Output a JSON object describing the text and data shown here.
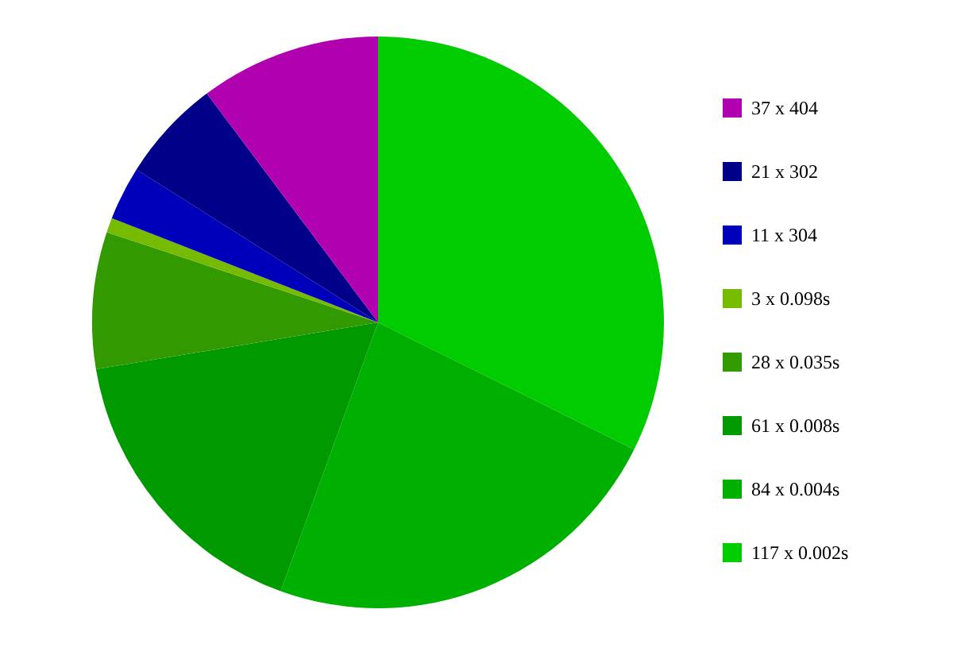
{
  "chart_data": {
    "type": "pie",
    "categories": [
      "117 x 0.002s",
      "84 x 0.004s",
      "61 x 0.008s",
      "28 x 0.035s",
      "3 x 0.098s",
      "11 x 304",
      "21 x 302",
      "37 x 404"
    ],
    "values": [
      32.33,
      23.2,
      16.85,
      7.73,
      0.83,
      3.04,
      5.8,
      10.22
    ],
    "colors": [
      "#00cc00",
      "#00b000",
      "#009900",
      "#339900",
      "#77bb00",
      "#0000bb",
      "#000088",
      "#b000b0"
    ],
    "legend": "right"
  }
}
